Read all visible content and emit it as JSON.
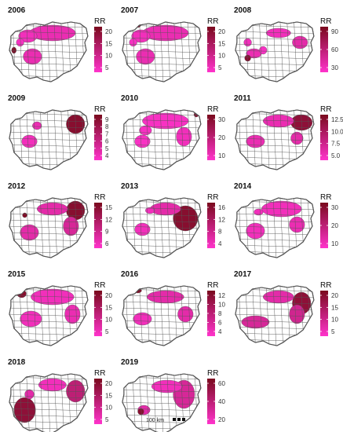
{
  "legend_title": "RR",
  "colors": {
    "low": "#ff33cc",
    "high": "#7a0a1e",
    "border": "#555555",
    "background_fill": "#ffffff"
  },
  "panels": [
    {
      "year": "2006",
      "ticks": [
        "20",
        "15",
        "10",
        "5"
      ]
    },
    {
      "year": "2007",
      "ticks": [
        "20",
        "15",
        "10",
        "5"
      ]
    },
    {
      "year": "2008",
      "ticks": [
        "90",
        "60",
        "30"
      ]
    },
    {
      "year": "2009",
      "ticks": [
        "9",
        "8",
        "7",
        "6",
        "5",
        "4"
      ]
    },
    {
      "year": "2010",
      "ticks": [
        "30",
        "20",
        "10"
      ]
    },
    {
      "year": "2011",
      "ticks": [
        "12.5",
        "10.0",
        "7.5",
        "5.0"
      ]
    },
    {
      "year": "2012",
      "ticks": [
        "15",
        "12",
        "9",
        "6"
      ]
    },
    {
      "year": "2013",
      "ticks": [
        "16",
        "12",
        "8",
        "4"
      ]
    },
    {
      "year": "2014",
      "ticks": [
        "30",
        "20",
        "10"
      ]
    },
    {
      "year": "2015",
      "ticks": [
        "20",
        "15",
        "10",
        "5"
      ]
    },
    {
      "year": "2016",
      "ticks": [
        "12",
        "10",
        "8",
        "6",
        "4"
      ]
    },
    {
      "year": "2017",
      "ticks": [
        "20",
        "15",
        "10",
        "5"
      ]
    },
    {
      "year": "2018",
      "ticks": [
        "20",
        "15",
        "10",
        "5"
      ]
    },
    {
      "year": "2019",
      "ticks": [
        "60",
        "40",
        "20"
      ]
    }
  ],
  "scale_bar_label": "100 km"
}
